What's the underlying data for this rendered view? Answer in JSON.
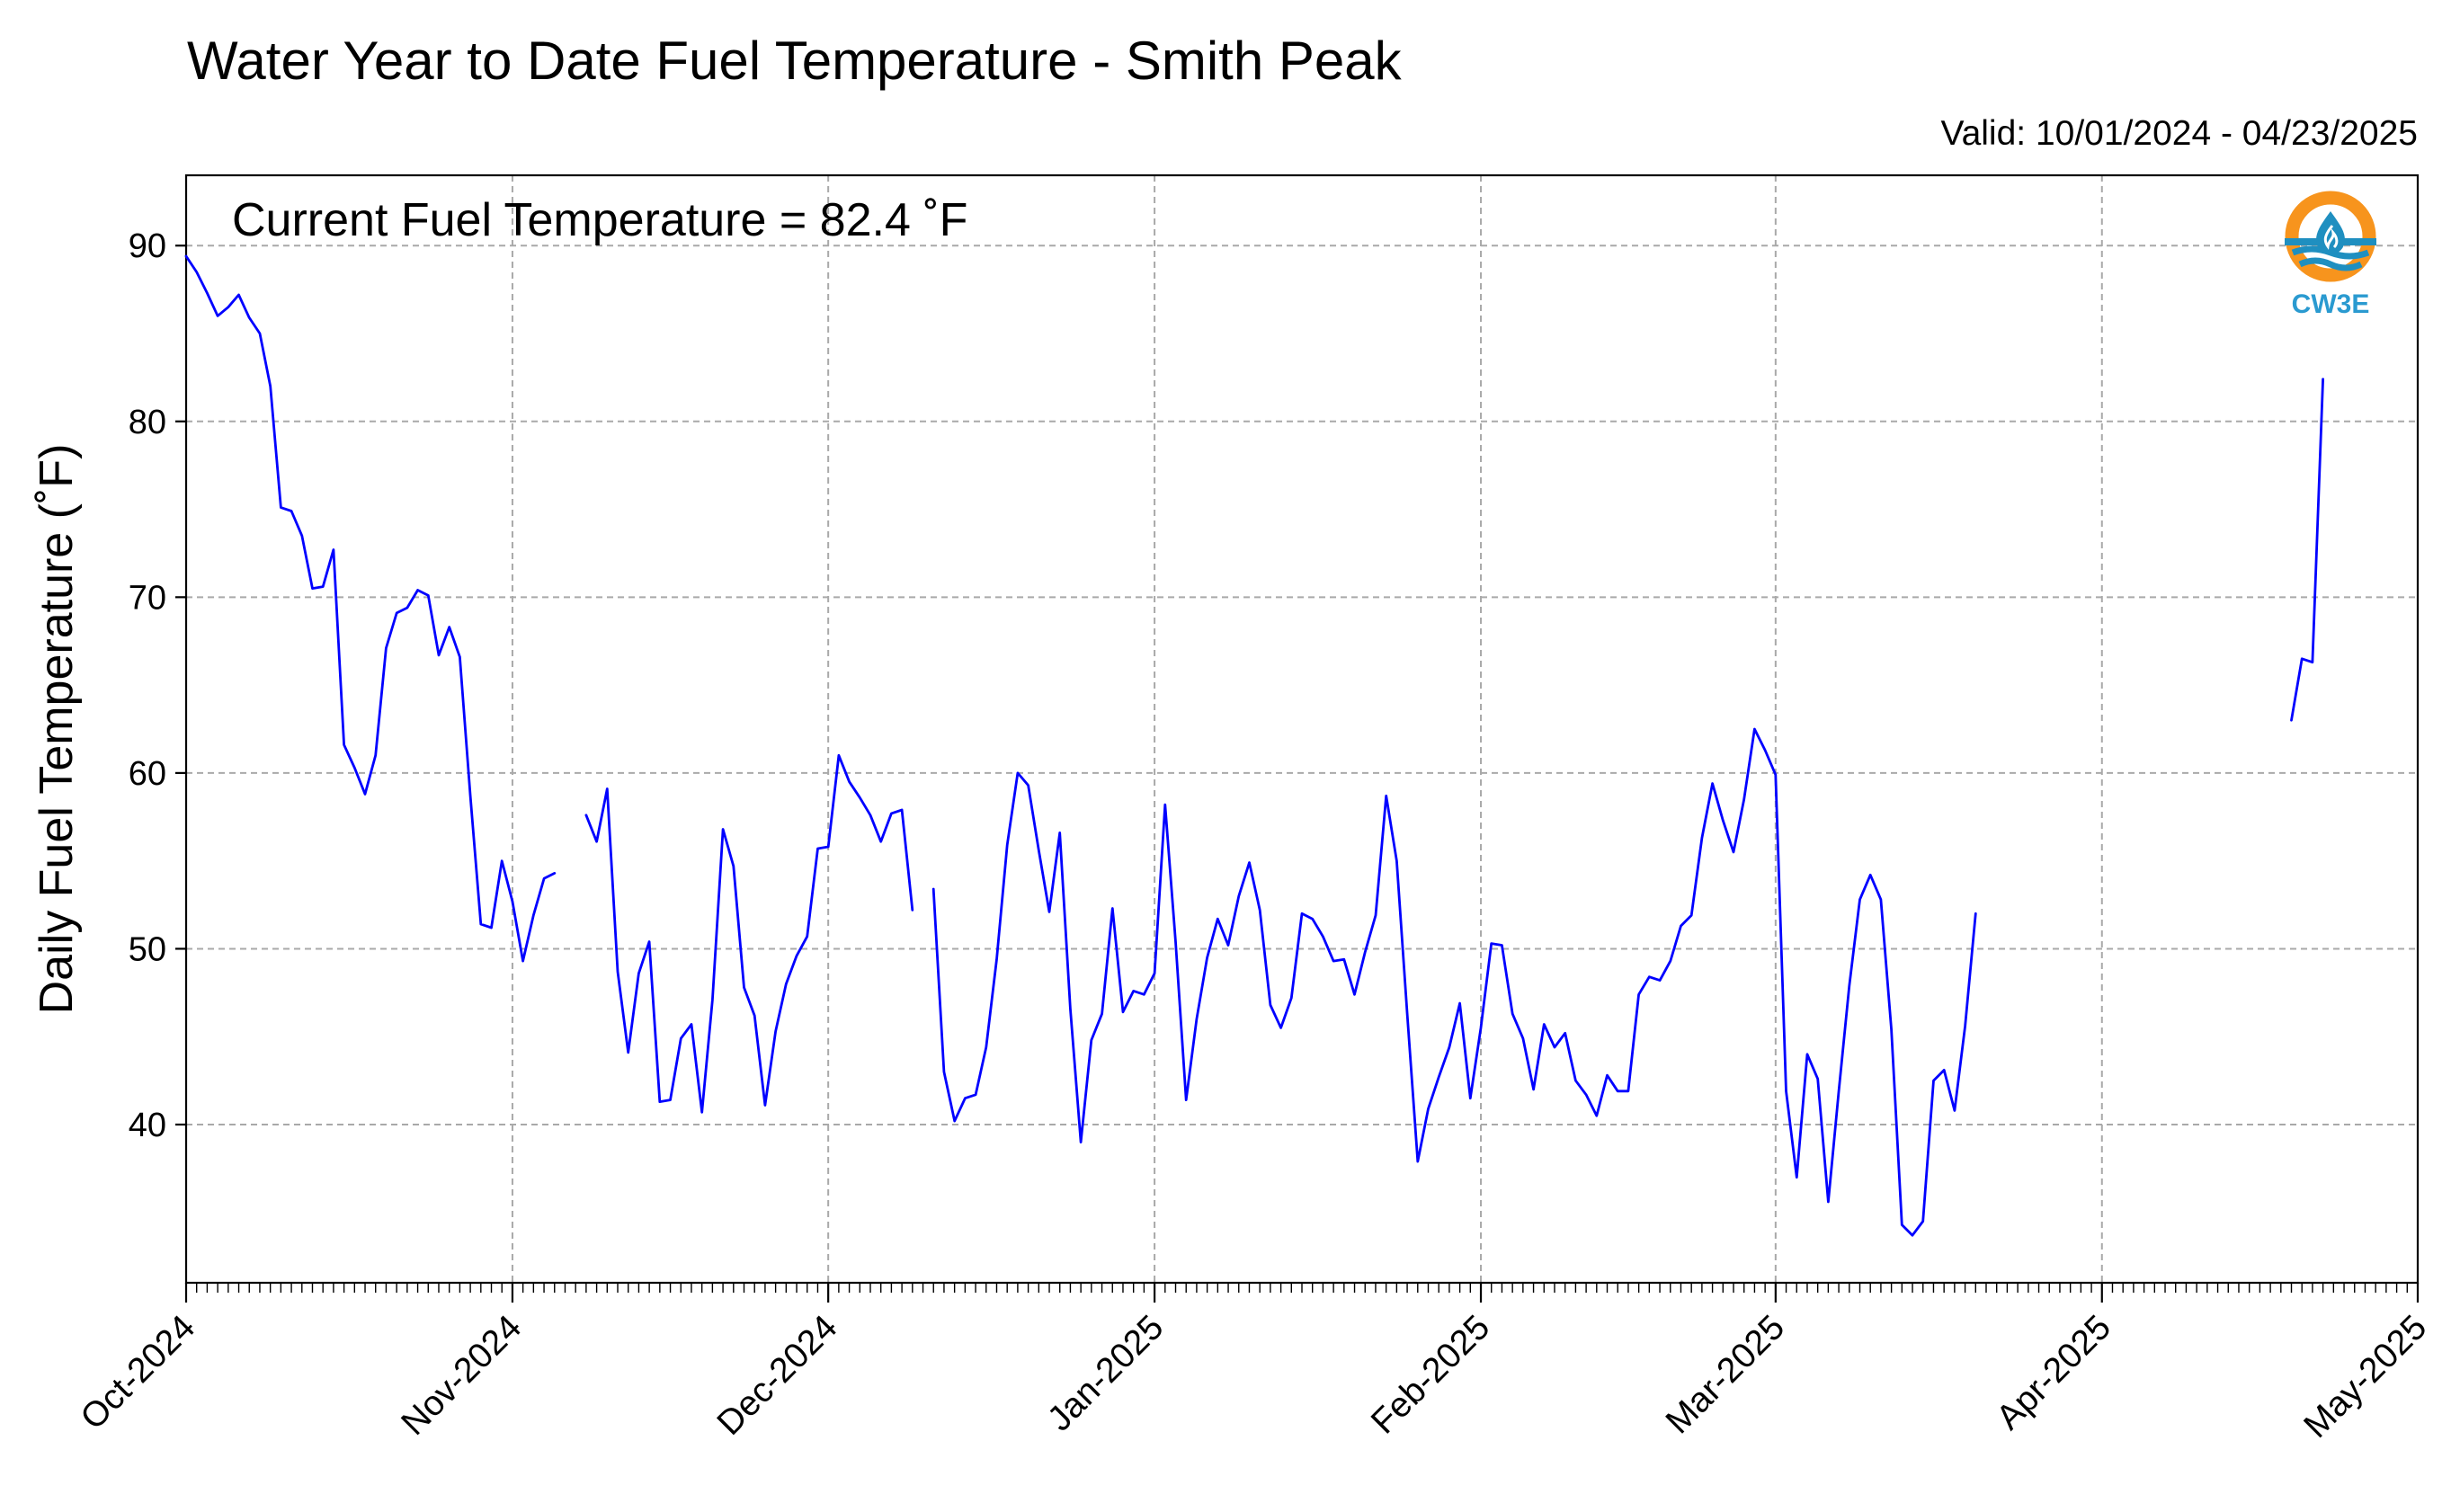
{
  "chart_data": {
    "type": "line",
    "title": "Water Year to Date Fuel Temperature - Smith Peak",
    "subtitle": "Valid: 10/01/2024 - 04/23/2025",
    "annotation": "Current Fuel Temperature = 82.4 ˚F",
    "ylabel": "Daily Fuel Temperature (˚F)",
    "xlabel": "",
    "x_start": "2024-10-01",
    "xlim": [
      "2024-10-01",
      "2025-05-01"
    ],
    "ylim": [
      31,
      94
    ],
    "yticks": [
      40,
      50,
      60,
      70,
      80,
      90
    ],
    "xticks": [
      {
        "date": "2024-10-01",
        "label": "Oct-2024"
      },
      {
        "date": "2024-11-01",
        "label": "Nov-2024"
      },
      {
        "date": "2024-12-01",
        "label": "Dec-2024"
      },
      {
        "date": "2025-01-01",
        "label": "Jan-2025"
      },
      {
        "date": "2025-02-01",
        "label": "Feb-2025"
      },
      {
        "date": "2025-03-01",
        "label": "Mar-2025"
      },
      {
        "date": "2025-04-01",
        "label": "Apr-2025"
      },
      {
        "date": "2025-05-01",
        "label": "May-2025"
      }
    ],
    "grid": true,
    "line_color": "#0000ff",
    "series": [
      {
        "values": [
          89.4,
          88.5,
          87.3,
          86.0,
          86.5,
          87.2,
          85.9,
          85.0,
          82.0,
          75.1,
          74.9,
          73.5,
          70.5,
          70.6,
          72.7,
          61.6,
          60.3,
          58.8,
          61.0,
          67.1,
          69.1,
          69.4,
          70.4,
          70.1,
          66.7,
          68.3,
          66.6,
          58.7,
          51.4,
          51.2,
          55.0,
          52.7,
          49.3,
          51.9,
          54.0,
          54.3,
          null,
          null,
          57.6,
          56.1,
          59.1,
          48.7,
          44.1,
          48.6,
          50.4,
          41.3,
          41.4,
          44.9,
          45.7,
          40.7,
          47.1,
          56.8,
          54.7,
          47.8,
          46.2,
          41.1,
          45.3,
          48.0,
          49.6,
          50.7,
          55.7,
          55.8,
          61.0,
          59.5,
          58.6,
          57.6,
          56.1,
          57.7,
          57.9,
          52.2,
          null,
          53.4,
          43.0,
          40.2,
          41.5,
          41.7,
          44.4,
          49.4,
          55.9,
          60.0,
          59.3,
          55.6,
          52.1,
          56.6,
          46.6,
          39.0,
          44.8,
          46.3,
          52.3,
          46.4,
          47.6,
          47.4,
          48.6,
          58.2,
          50.4,
          41.4,
          46.0,
          49.5,
          51.7,
          50.2,
          53.0,
          54.9,
          52.2,
          46.8,
          45.5,
          47.2,
          52.0,
          51.7,
          50.7,
          49.3,
          49.4,
          47.4,
          49.8,
          51.9,
          58.7,
          55.0,
          46.3,
          37.9,
          40.9,
          42.7,
          44.4,
          46.9,
          41.5,
          45.5,
          50.3,
          50.2,
          46.3,
          44.9,
          42.0,
          45.7,
          44.4,
          45.2,
          42.5,
          41.7,
          40.5,
          42.8,
          41.9,
          41.9,
          47.4,
          48.4,
          48.2,
          49.3,
          51.3,
          51.9,
          56.3,
          59.4,
          57.3,
          55.5,
          58.5,
          62.5,
          61.3,
          59.9,
          41.9,
          37.0,
          44.0,
          42.6,
          35.6,
          41.9,
          47.9,
          52.8,
          54.2,
          52.8,
          45.4,
          34.3,
          33.7,
          34.5,
          42.5,
          43.1,
          40.8,
          45.6,
          52.0,
          null,
          null,
          null,
          null,
          null,
          null,
          null,
          null,
          null,
          null,
          null,
          null,
          null,
          null,
          null,
          null,
          null,
          null,
          null,
          null,
          null,
          null,
          null,
          null,
          null,
          null,
          null,
          null,
          null,
          63.0,
          66.5,
          66.3,
          82.4
        ]
      }
    ]
  },
  "logo": {
    "text": "CW3E",
    "ring_color": "#f7941d",
    "wave_color": "#1f8fc0",
    "text_color": "#2a9ad0"
  }
}
